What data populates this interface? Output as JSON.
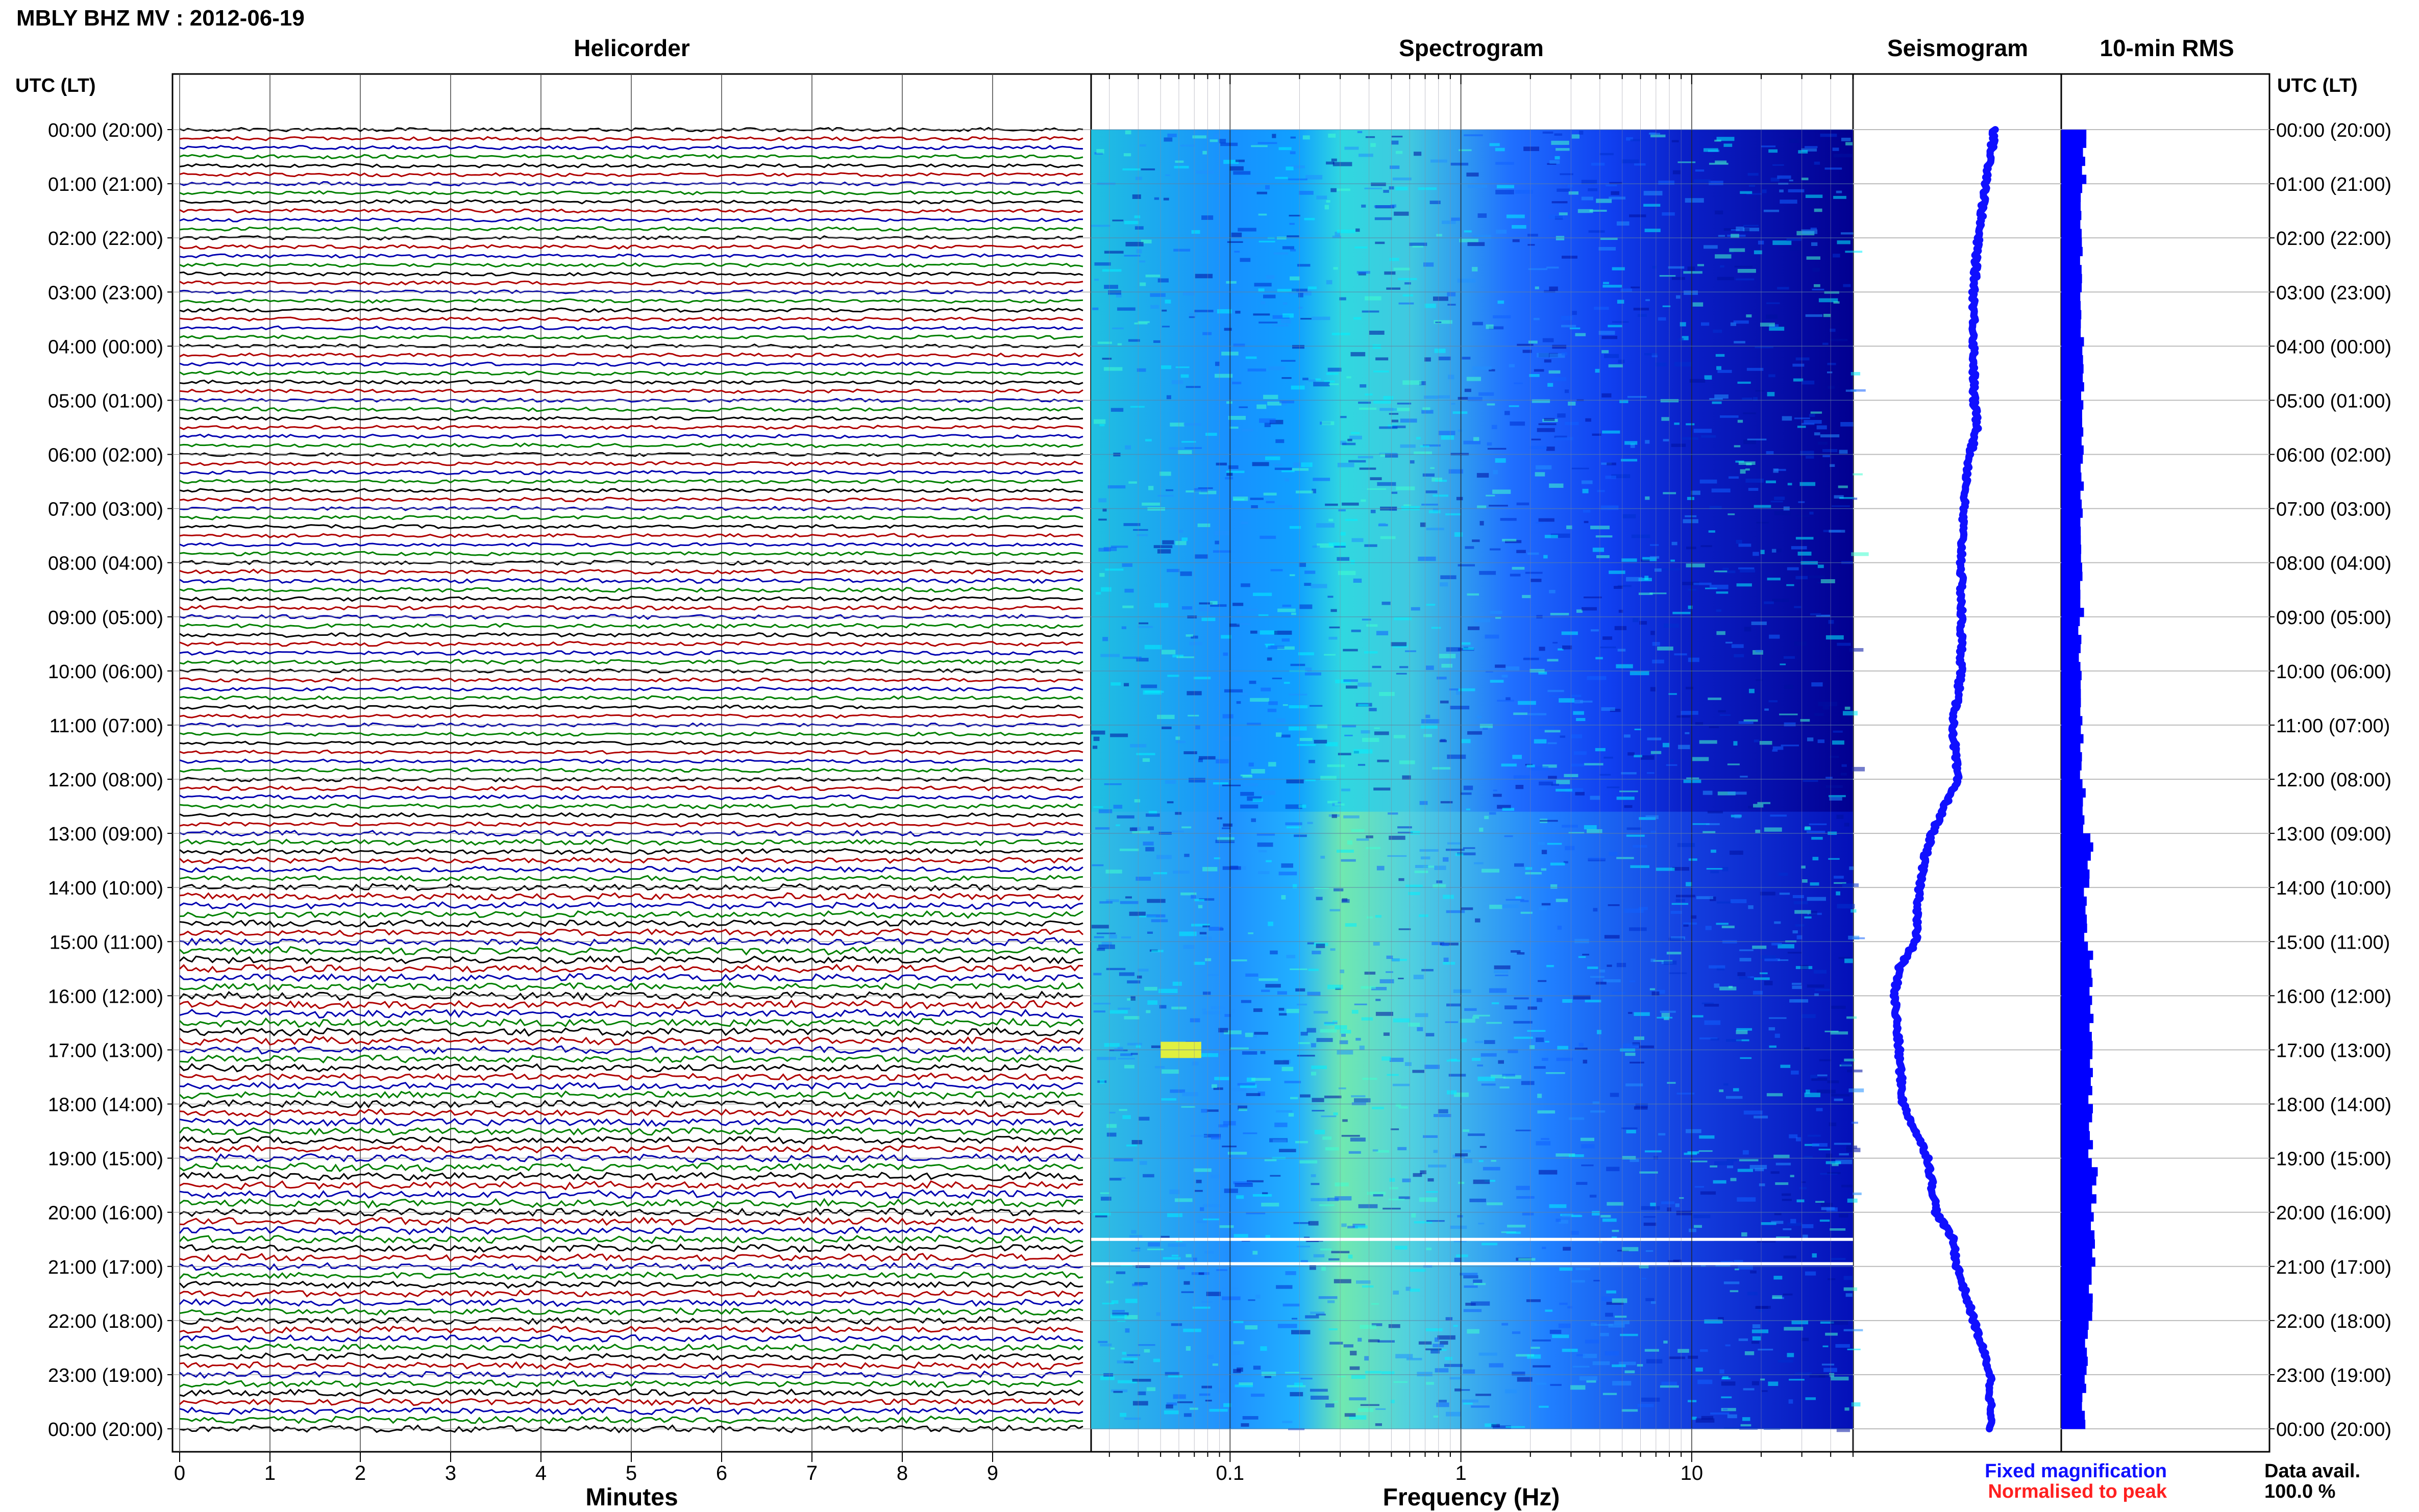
{
  "page_title": "MBLY BHZ MV : 2012-06-19",
  "chart_data": [
    {
      "type": "helicorder",
      "title": "Helicorder",
      "xlabel": "Minutes",
      "x_ticks": [
        0,
        1,
        2,
        3,
        4,
        5,
        6,
        7,
        8,
        9
      ],
      "xlim": [
        0,
        10
      ],
      "traces_per_hour": 6,
      "trace_minutes": 10,
      "trace_colors": [
        "#000000",
        "#b00000",
        "#0000b0",
        "#008000"
      ],
      "hour_labels_utc": [
        "00:00",
        "01:00",
        "02:00",
        "03:00",
        "04:00",
        "05:00",
        "06:00",
        "07:00",
        "08:00",
        "09:00",
        "10:00",
        "11:00",
        "12:00",
        "13:00",
        "14:00",
        "15:00",
        "16:00",
        "17:00",
        "18:00",
        "19:00",
        "20:00",
        "21:00",
        "22:00",
        "23:00",
        "00:00"
      ],
      "hour_labels_lt": [
        "(20:00)",
        "(21:00)",
        "(22:00)",
        "(23:00)",
        "(00:00)",
        "(01:00)",
        "(02:00)",
        "(03:00)",
        "(04:00)",
        "(05:00)",
        "(06:00)",
        "(07:00)",
        "(08:00)",
        "(09:00)",
        "(10:00)",
        "(11:00)",
        "(12:00)",
        "(13:00)",
        "(14:00)",
        "(15:00)",
        "(16:00)",
        "(17:00)",
        "(18:00)",
        "(19:00)",
        "(20:00)"
      ],
      "axis_label": "UTC (LT)",
      "trace_amplitude_by_hour": [
        0.3,
        0.3,
        0.3,
        0.3,
        0.3,
        0.3,
        0.3,
        0.3,
        0.35,
        0.35,
        0.3,
        0.3,
        0.35,
        0.45,
        0.55,
        0.6,
        0.65,
        0.6,
        0.6,
        0.65,
        0.6,
        0.55,
        0.55,
        0.55
      ]
    },
    {
      "type": "heatmap",
      "title": "Spectrogram",
      "xlabel": "Frequency (Hz)",
      "x_scale": "log",
      "xlim": [
        0.025,
        50
      ],
      "x_ticks": [
        0.1,
        1,
        10
      ],
      "x_tick_labels": [
        "0.1",
        "1",
        "10"
      ],
      "ylim_hours": [
        0,
        24
      ],
      "colormap": [
        "#00007f",
        "#0000ff",
        "#0080ff",
        "#00e0ff",
        "#80ff80",
        "#ffff00"
      ],
      "gaps_at_hours": [
        20.5,
        20.95
      ]
    },
    {
      "type": "line",
      "title": "Seismogram",
      "legend": [
        {
          "label": "Fixed magnification",
          "color": "#1010ff"
        },
        {
          "label": "Normalised to peak",
          "color": "#ff2020"
        }
      ],
      "x_hours": [
        0,
        1,
        2,
        3,
        4,
        5,
        5.5,
        6,
        7,
        8,
        9,
        10,
        11,
        12,
        12.5,
        13,
        13.5,
        14,
        15,
        15.5,
        16,
        17,
        18,
        18.5,
        19,
        20,
        20.5,
        21,
        22,
        23,
        24
      ],
      "offset": [
        0.68,
        0.64,
        0.6,
        0.58,
        0.58,
        0.58,
        0.6,
        0.56,
        0.53,
        0.52,
        0.52,
        0.52,
        0.48,
        0.5,
        0.44,
        0.38,
        0.34,
        0.32,
        0.3,
        0.22,
        0.2,
        0.22,
        0.24,
        0.3,
        0.36,
        0.4,
        0.48,
        0.5,
        0.58,
        0.66,
        0.66
      ],
      "color": "#1010ff"
    },
    {
      "type": "bar",
      "title": "10-min RMS",
      "orientation": "horizontal",
      "color": "#0000ff",
      "rms_by_hour": [
        0.55,
        0.5,
        0.5,
        0.5,
        0.5,
        0.5,
        0.5,
        0.5,
        0.5,
        0.45,
        0.5,
        0.5,
        0.55,
        0.7,
        0.6,
        0.7,
        0.75,
        0.7,
        0.72,
        0.8,
        0.75,
        0.7,
        0.6,
        0.55
      ],
      "footer_label": "Data avail.",
      "footer_value": "100.0 %"
    }
  ]
}
